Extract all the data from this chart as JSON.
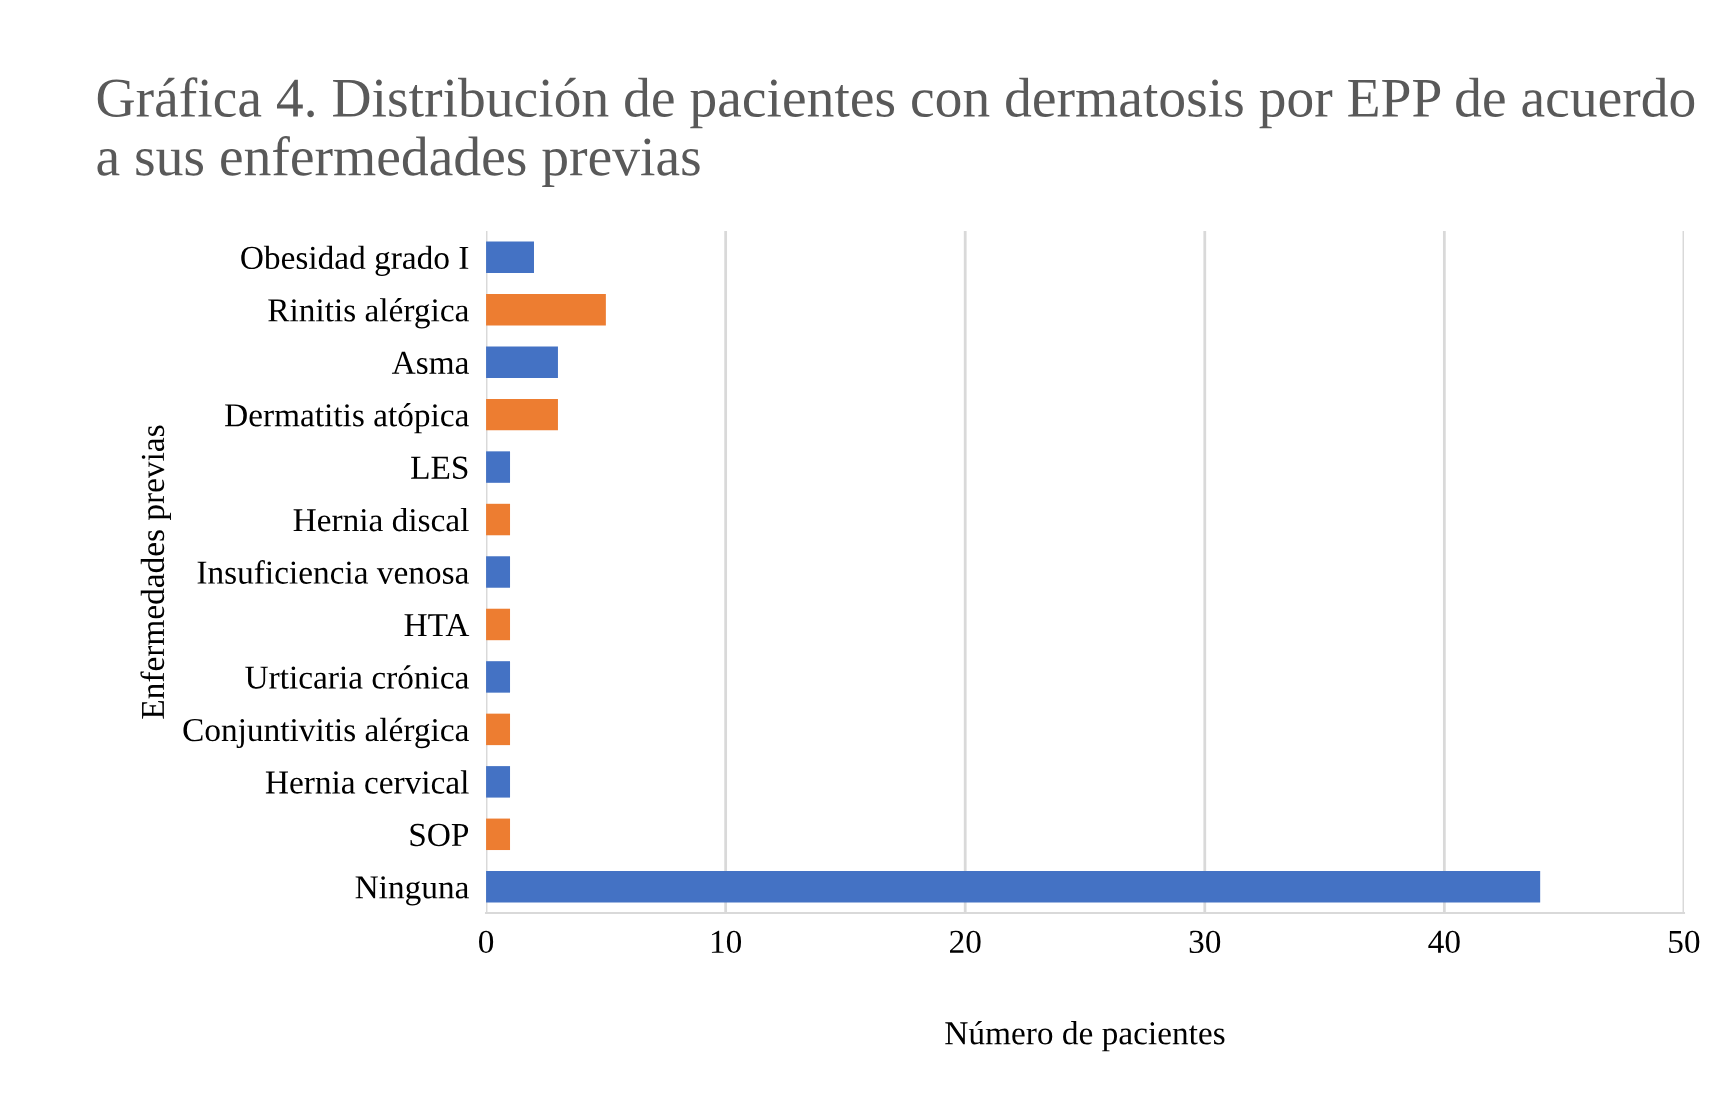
{
  "chart_data": {
    "type": "bar",
    "orientation": "horizontal",
    "title": "Gráfica 4. Distribución de pacientes con dermatosis por EPP de acuerdo a sus enfermedades previas",
    "xlabel": "Número de pacientes",
    "ylabel": "Enfermedades previas",
    "categories": [
      "Obesidad grado I",
      "Rinitis alérgica",
      "Asma",
      "Dermatitis atópica",
      "LES",
      "Hernia discal",
      "Insuficiencia venosa",
      "HTA",
      "Urticaria crónica",
      "Conjuntivitis alérgica",
      "Hernia cervical",
      "SOP",
      "Ninguna"
    ],
    "values": [
      2,
      5,
      3,
      3,
      1,
      1,
      1,
      1,
      1,
      1,
      1,
      1,
      44
    ],
    "colors": [
      "#4472c4",
      "#ed7d31",
      "#4472c4",
      "#ed7d31",
      "#4472c4",
      "#ed7d31",
      "#4472c4",
      "#ed7d31",
      "#4472c4",
      "#ed7d31",
      "#4472c4",
      "#ed7d31",
      "#4472c4"
    ],
    "xlim": [
      0,
      50
    ],
    "xticks": [
      0,
      10,
      20,
      30,
      40,
      50
    ],
    "grid": "x",
    "legend": false
  }
}
